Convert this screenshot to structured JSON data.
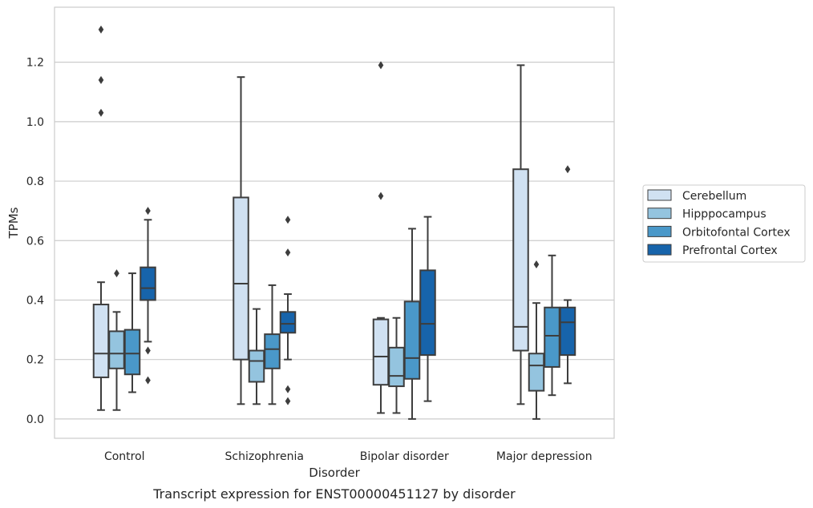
{
  "chart_data": {
    "type": "box",
    "caption": "Transcript expression for ENST00000451127 by disorder",
    "xlabel": "Disorder",
    "ylabel": "TPMs",
    "ylim": [
      -0.065,
      1.385
    ],
    "yticks": [
      0.0,
      0.2,
      0.4,
      0.6,
      0.8,
      1.0,
      1.2
    ],
    "ytick_labels": [
      "0.0",
      "0.2",
      "0.4",
      "0.6",
      "0.8",
      "1.0",
      "1.2"
    ],
    "grid": "horizontal",
    "legend_position": "right",
    "categories": [
      "Control",
      "Schizophrenia",
      "Bipolar disorder",
      "Major depression"
    ],
    "series": [
      {
        "name": "Cerebellum",
        "color": "#d0e1f2",
        "boxes": [
          {
            "whislo": 0.03,
            "q1": 0.14,
            "med": 0.22,
            "q3": 0.385,
            "whishi": 0.46,
            "fliers": [
              1.03,
              1.14,
              1.31
            ]
          },
          {
            "whislo": 0.05,
            "q1": 0.2,
            "med": 0.455,
            "q3": 0.745,
            "whishi": 1.15,
            "fliers": []
          },
          {
            "whislo": 0.02,
            "q1": 0.115,
            "med": 0.21,
            "q3": 0.335,
            "whishi": 0.34,
            "fliers": [
              0.75,
              1.19
            ]
          },
          {
            "whislo": 0.05,
            "q1": 0.23,
            "med": 0.31,
            "q3": 0.84,
            "whishi": 1.19,
            "fliers": []
          }
        ]
      },
      {
        "name": "Hipppocampus",
        "color": "#94c4df",
        "boxes": [
          {
            "whislo": 0.03,
            "q1": 0.17,
            "med": 0.22,
            "q3": 0.295,
            "whishi": 0.36,
            "fliers": [
              0.49
            ]
          },
          {
            "whislo": 0.05,
            "q1": 0.125,
            "med": 0.195,
            "q3": 0.23,
            "whishi": 0.37,
            "fliers": []
          },
          {
            "whislo": 0.02,
            "q1": 0.11,
            "med": 0.145,
            "q3": 0.24,
            "whishi": 0.34,
            "fliers": []
          },
          {
            "whislo": 0.0,
            "q1": 0.095,
            "med": 0.18,
            "q3": 0.22,
            "whishi": 0.39,
            "fliers": [
              0.52
            ]
          }
        ]
      },
      {
        "name": "Orbitofontal Cortex",
        "color": "#4a98c9",
        "boxes": [
          {
            "whislo": 0.09,
            "q1": 0.15,
            "med": 0.22,
            "q3": 0.3,
            "whishi": 0.49,
            "fliers": []
          },
          {
            "whislo": 0.05,
            "q1": 0.17,
            "med": 0.235,
            "q3": 0.285,
            "whishi": 0.45,
            "fliers": []
          },
          {
            "whislo": 0.0,
            "q1": 0.135,
            "med": 0.205,
            "q3": 0.395,
            "whishi": 0.64,
            "fliers": []
          },
          {
            "whislo": 0.08,
            "q1": 0.175,
            "med": 0.28,
            "q3": 0.375,
            "whishi": 0.55,
            "fliers": []
          }
        ]
      },
      {
        "name": "Prefrontal Cortex",
        "color": "#1764ab",
        "boxes": [
          {
            "whislo": 0.26,
            "q1": 0.4,
            "med": 0.44,
            "q3": 0.51,
            "whishi": 0.67,
            "fliers": [
              0.13,
              0.23,
              0.7
            ]
          },
          {
            "whislo": 0.2,
            "q1": 0.29,
            "med": 0.32,
            "q3": 0.36,
            "whishi": 0.42,
            "fliers": [
              0.06,
              0.1,
              0.56,
              0.67
            ]
          },
          {
            "whislo": 0.06,
            "q1": 0.215,
            "med": 0.32,
            "q3": 0.5,
            "whishi": 0.68,
            "fliers": []
          },
          {
            "whislo": 0.12,
            "q1": 0.215,
            "med": 0.325,
            "q3": 0.375,
            "whishi": 0.4,
            "fliers": [
              0.84
            ]
          }
        ]
      }
    ]
  }
}
